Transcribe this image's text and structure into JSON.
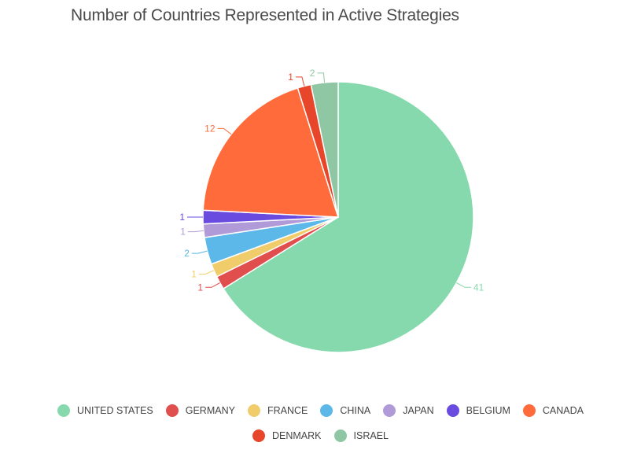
{
  "chart_data": {
    "type": "pie",
    "title": "Number of Countries Represented in Active Strategies",
    "categories": [
      "UNITED STATES",
      "GERMANY",
      "FRANCE",
      "CHINA",
      "JAPAN",
      "BELGIUM",
      "CANADA",
      "DENMARK",
      "ISRAEL"
    ],
    "values": [
      41,
      1,
      1,
      2,
      1,
      1,
      12,
      1,
      2
    ],
    "value_labels": [
      "41",
      "1",
      "1",
      "2",
      "1",
      "1",
      "12",
      "1",
      "2"
    ],
    "colors": [
      "#86d9ac",
      "#e04e4e",
      "#f0cd6a",
      "#5bb8e8",
      "#b19ad8",
      "#6a4be0",
      "#ff6b3b",
      "#e8462a",
      "#8fc7a4"
    ],
    "start_angle_deg": 0,
    "direction": "clockwise",
    "legend_position": "bottom",
    "legend_rows": [
      [
        0,
        1,
        2,
        3,
        4,
        5,
        6
      ],
      [
        7,
        8
      ]
    ]
  }
}
